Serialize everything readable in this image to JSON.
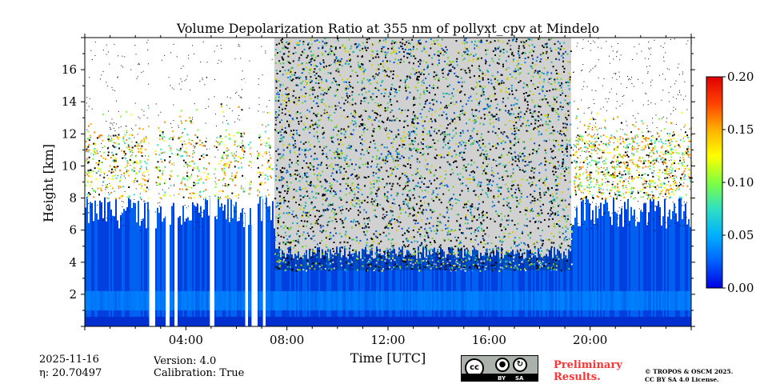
{
  "chart_data": {
    "type": "heatmap",
    "title": "Volume Depolarization Ratio at 355 nm of pollyxt_cpv at Mindelo",
    "xlabel": "Time [UTC]",
    "ylabel": "Height [km]",
    "xlim_hours": [
      0,
      24
    ],
    "ylim_km": [
      0,
      18
    ],
    "xticks": [
      {
        "value": 4,
        "label": "04:00"
      },
      {
        "value": 8,
        "label": "08:00"
      },
      {
        "value": 12,
        "label": "12:00"
      },
      {
        "value": 16,
        "label": "16:00"
      },
      {
        "value": 20,
        "label": "20:00"
      }
    ],
    "yticks": [
      {
        "value": 2,
        "label": "2"
      },
      {
        "value": 4,
        "label": "4"
      },
      {
        "value": 6,
        "label": "6"
      },
      {
        "value": 8,
        "label": "8"
      },
      {
        "value": 10,
        "label": "10"
      },
      {
        "value": 12,
        "label": "12"
      },
      {
        "value": 14,
        "label": "14"
      },
      {
        "value": 16,
        "label": "16"
      }
    ],
    "colorbar": {
      "range": [
        0.0,
        0.2
      ],
      "ticks": [
        {
          "value": 0.0,
          "label": "0.00"
        },
        {
          "value": 0.05,
          "label": "0.05"
        },
        {
          "value": 0.1,
          "label": "0.10"
        },
        {
          "value": 0.15,
          "label": "0.15"
        },
        {
          "value": 0.2,
          "label": "0.20"
        }
      ],
      "colors": [
        "#0000e0",
        "#0060ff",
        "#00b0ff",
        "#30e0c0",
        "#80ff40",
        "#ffff00",
        "#ffb000",
        "#ff4000",
        "#e00000"
      ]
    },
    "features": {
      "cloud_free_gaps_hours": [
        [
          2.55,
          2.75
        ],
        [
          3.2,
          3.3
        ],
        [
          3.55,
          3.62
        ],
        [
          4.95,
          5.1
        ],
        [
          6.35,
          6.45
        ],
        [
          6.6,
          6.8
        ],
        [
          7.05,
          7.1
        ]
      ],
      "dust_layer_top_km_day": 8.0,
      "aerosol_top_km_night": 7.6,
      "noisy_period_hours": [
        7.5,
        19.25
      ],
      "elevated_depol_layer_km": [
        8.0,
        12.0
      ]
    }
  },
  "footer": {
    "date": "2025-11-16",
    "eta": "η: 20.70497",
    "version": "Version: 4.0",
    "calibration": "Calibration: True",
    "preliminary_line1": "Preliminary",
    "preliminary_line2": "Results.",
    "copyright_line1": "© TROPOS & OSCM 2025.",
    "copyright_line2": "CC BY SA 4.0 License.",
    "license_badge": {
      "cc": "cc",
      "by": "BY",
      "sa": "SA"
    }
  }
}
